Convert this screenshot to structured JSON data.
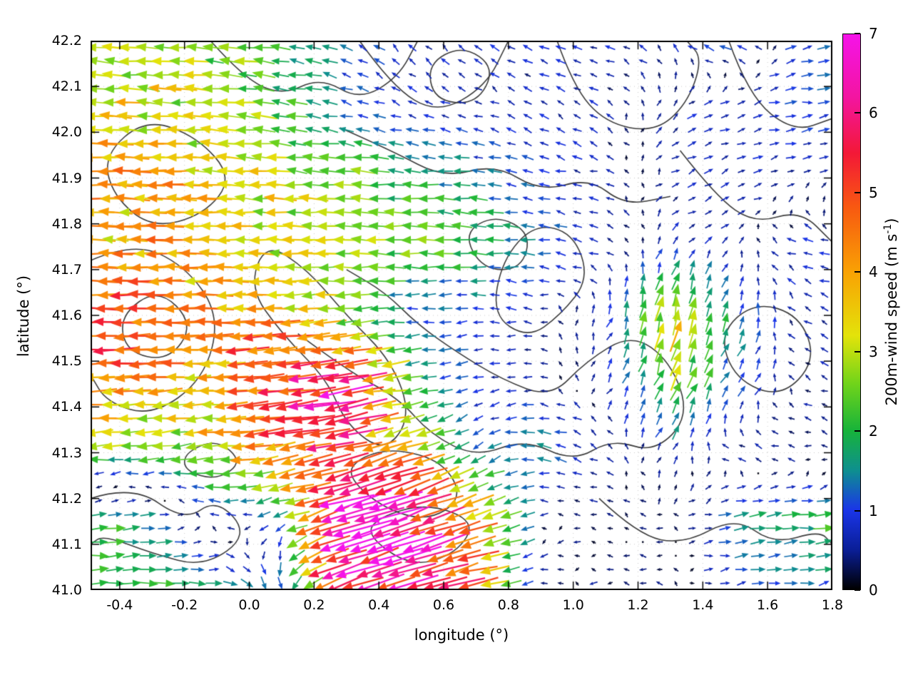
{
  "figure": {
    "background": "#ffffff"
  },
  "chart_data": {
    "type": "quiver",
    "title": "",
    "xlabel": "longitude (°)",
    "ylabel": "latitude (°)",
    "xlim": [
      -0.49,
      1.8
    ],
    "ylim": [
      41.0,
      42.2
    ],
    "grid": "dotted",
    "x_tick_values": [
      -0.4,
      -0.2,
      0.0,
      0.2,
      0.4,
      0.6,
      0.8,
      1.0,
      1.2,
      1.4,
      1.6,
      1.8
    ],
    "x_tick_labels": [
      "-0.4",
      "-0.2",
      "0.0",
      "0.2",
      "0.4",
      "0.6",
      "0.8",
      "1.0",
      "1.2",
      "1.4",
      "1.6",
      "1.8"
    ],
    "y_tick_values": [
      41.0,
      41.1,
      41.2,
      41.3,
      41.4,
      41.5,
      41.6,
      41.7,
      41.8,
      41.9,
      42.0,
      42.1,
      42.2
    ],
    "y_tick_labels": [
      "41.0",
      "41.1",
      "41.2",
      "41.3",
      "41.4",
      "41.5",
      "41.6",
      "41.7",
      "41.8",
      "41.9",
      "42.0",
      "42.1",
      "42.2"
    ],
    "colorbar": {
      "label_pre": "200m-wind speed (m s",
      "label_sup": "-1",
      "label_post": ")",
      "min": 0,
      "max": 7,
      "tick_values": [
        0,
        1,
        2,
        3,
        4,
        5,
        6,
        7
      ],
      "tick_labels": [
        "0",
        "1",
        "2",
        "3",
        "4",
        "5",
        "6",
        "7"
      ],
      "stops": [
        [
          0.0,
          "#000000"
        ],
        [
          0.5,
          "#0a1e96"
        ],
        [
          1.0,
          "#1a35e8"
        ],
        [
          1.5,
          "#0e8f8f"
        ],
        [
          2.0,
          "#17b33a"
        ],
        [
          2.6,
          "#71d41a"
        ],
        [
          3.2,
          "#e3e30a"
        ],
        [
          4.0,
          "#f9a204"
        ],
        [
          4.8,
          "#f85a10"
        ],
        [
          5.5,
          "#f31837"
        ],
        [
          6.2,
          "#f315a0"
        ],
        [
          7.0,
          "#f513e9"
        ]
      ]
    },
    "wind_grid": {
      "units": "m s-1",
      "lons": [
        -0.5,
        -0.3,
        -0.1,
        0.1,
        0.3,
        0.5,
        0.7,
        0.9,
        1.1,
        1.3,
        1.5,
        1.7
      ],
      "lats": [
        41.0,
        41.15,
        41.3,
        41.45,
        41.6,
        41.75,
        41.9,
        42.05,
        42.2
      ],
      "u": [
        [
          2.5,
          2.2,
          1.8,
          0.5,
          -5.5,
          -6.0,
          -4.5,
          -0.4,
          -0.3,
          -0.3,
          0.8,
          1.2
        ],
        [
          2.0,
          1.5,
          -0.5,
          -1.0,
          -6.8,
          -6.5,
          -4.0,
          -0.3,
          -0.2,
          -0.3,
          1.5,
          2.0
        ],
        [
          -2.5,
          -2.2,
          -3.0,
          -4.5,
          -5.5,
          -3.5,
          -1.0,
          -1.5,
          -0.5,
          0.4,
          -0.6,
          -0.5
        ],
        [
          -4.5,
          -4.2,
          -4.0,
          -5.5,
          -6.5,
          -2.0,
          -0.8,
          -0.5,
          0.3,
          1.0,
          0.8,
          -0.4
        ],
        [
          -5.0,
          -4.8,
          -4.2,
          -4.0,
          -2.5,
          -1.2,
          -0.8,
          -0.5,
          0.3,
          0.8,
          0.5,
          -0.5
        ],
        [
          -3.8,
          -4.0,
          -3.6,
          -3.2,
          -3.0,
          -2.5,
          -2.0,
          -1.2,
          -0.6,
          0.5,
          0.3,
          -0.8
        ],
        [
          -4.2,
          -4.0,
          -3.5,
          -3.0,
          -2.5,
          -2.0,
          -1.5,
          -1.0,
          -0.5,
          0.4,
          0.6,
          0.5
        ],
        [
          -3.5,
          -3.2,
          -3.0,
          -2.2,
          -1.2,
          -0.6,
          -0.5,
          -0.6,
          -0.4,
          0.5,
          0.8,
          1.2
        ],
        [
          -3.0,
          -2.8,
          -2.5,
          -2.0,
          -1.0,
          -0.5,
          -0.6,
          -0.8,
          -0.7,
          -0.5,
          -1.2,
          1.0
        ]
      ],
      "v": [
        [
          0.1,
          0.0,
          -0.2,
          -1.5,
          -2.0,
          -2.0,
          -1.0,
          -0.1,
          0.0,
          0.1,
          0.1,
          0.2
        ],
        [
          0.2,
          0.3,
          0.2,
          -0.5,
          -2.0,
          -2.5,
          -1.5,
          -0.1,
          0.0,
          0.1,
          0.2,
          0.2
        ],
        [
          -0.2,
          -0.2,
          -0.3,
          -0.8,
          -1.5,
          -1.0,
          -0.8,
          0.3,
          0.3,
          0.6,
          0.2,
          0.1
        ],
        [
          -0.2,
          -0.2,
          -0.3,
          -0.5,
          -1.0,
          -0.3,
          -0.2,
          0.0,
          0.5,
          2.5,
          1.0,
          0.2
        ],
        [
          0.0,
          -0.1,
          0.0,
          -0.2,
          -0.2,
          -0.1,
          0.0,
          0.1,
          0.8,
          3.5,
          1.5,
          0.3
        ],
        [
          0.0,
          0.1,
          0.1,
          0.1,
          0.1,
          0.1,
          0.1,
          0.1,
          0.2,
          0.5,
          0.4,
          0.2
        ],
        [
          0.1,
          0.1,
          0.2,
          0.2,
          0.2,
          0.1,
          0.2,
          0.2,
          0.2,
          0.3,
          0.2,
          0.3
        ],
        [
          0.1,
          0.2,
          0.2,
          0.3,
          0.3,
          0.3,
          0.2,
          0.4,
          0.3,
          0.4,
          0.2,
          0.1
        ],
        [
          0.2,
          0.3,
          0.2,
          0.3,
          0.5,
          0.5,
          0.4,
          0.3,
          0.2,
          0.5,
          0.3,
          0.3
        ]
      ]
    },
    "contours": [
      {
        "closed": true,
        "pts": [
          [
            -0.45,
            41.95
          ],
          [
            -0.32,
            42.03
          ],
          [
            -0.16,
            41.99
          ],
          [
            -0.05,
            41.9
          ],
          [
            -0.14,
            41.82
          ],
          [
            -0.3,
            41.79
          ],
          [
            -0.42,
            41.86
          ]
        ]
      },
      {
        "closed": false,
        "pts": [
          [
            -0.49,
            41.72
          ],
          [
            -0.36,
            41.76
          ],
          [
            -0.2,
            41.71
          ],
          [
            -0.09,
            41.6
          ],
          [
            -0.14,
            41.46
          ],
          [
            -0.3,
            41.38
          ],
          [
            -0.44,
            41.41
          ],
          [
            -0.49,
            41.47
          ]
        ]
      },
      {
        "closed": true,
        "pts": [
          [
            -0.4,
            41.6
          ],
          [
            -0.28,
            41.66
          ],
          [
            -0.17,
            41.58
          ],
          [
            -0.25,
            41.5
          ],
          [
            -0.38,
            41.52
          ]
        ]
      },
      {
        "closed": true,
        "pts": [
          [
            0.05,
            41.76
          ],
          [
            0.18,
            41.7
          ],
          [
            0.3,
            41.6
          ],
          [
            0.44,
            41.5
          ],
          [
            0.5,
            41.38
          ],
          [
            0.42,
            41.3
          ],
          [
            0.3,
            41.36
          ],
          [
            0.24,
            41.46
          ],
          [
            0.1,
            41.56
          ],
          [
            0.0,
            41.66
          ]
        ]
      },
      {
        "closed": false,
        "pts": [
          [
            0.15,
            41.56
          ],
          [
            0.3,
            41.48
          ],
          [
            0.46,
            41.42
          ],
          [
            0.56,
            41.34
          ],
          [
            0.7,
            41.29
          ],
          [
            0.85,
            41.33
          ],
          [
            1.0,
            41.28
          ],
          [
            1.12,
            41.33
          ],
          [
            1.25,
            41.3
          ],
          [
            1.36,
            41.38
          ],
          [
            1.3,
            41.5
          ],
          [
            1.18,
            41.56
          ],
          [
            1.04,
            41.5
          ],
          [
            0.93,
            41.42
          ],
          [
            0.78,
            41.46
          ],
          [
            0.64,
            41.52
          ],
          [
            0.52,
            41.58
          ],
          [
            0.42,
            41.65
          ],
          [
            0.3,
            41.7
          ]
        ]
      },
      {
        "closed": false,
        "pts": [
          [
            0.34,
            42.2
          ],
          [
            0.44,
            42.1
          ],
          [
            0.58,
            42.04
          ],
          [
            0.73,
            42.1
          ],
          [
            0.8,
            42.2
          ]
        ]
      },
      {
        "closed": true,
        "pts": [
          [
            0.55,
            42.15
          ],
          [
            0.66,
            42.19
          ],
          [
            0.76,
            42.14
          ],
          [
            0.7,
            42.06
          ],
          [
            0.57,
            42.07
          ]
        ]
      },
      {
        "closed": false,
        "pts": [
          [
            0.28,
            42.01
          ],
          [
            0.44,
            41.96
          ],
          [
            0.6,
            41.9
          ],
          [
            0.76,
            41.93
          ],
          [
            0.9,
            41.87
          ],
          [
            1.05,
            41.9
          ],
          [
            1.16,
            41.84
          ],
          [
            1.3,
            41.86
          ]
        ]
      },
      {
        "closed": false,
        "pts": [
          [
            1.48,
            42.2
          ],
          [
            1.54,
            42.08
          ],
          [
            1.68,
            42.0
          ],
          [
            1.8,
            42.03
          ]
        ]
      },
      {
        "closed": false,
        "pts": [
          [
            1.33,
            41.96
          ],
          [
            1.44,
            41.86
          ],
          [
            1.56,
            41.8
          ],
          [
            1.7,
            41.83
          ],
          [
            1.8,
            41.76
          ]
        ]
      },
      {
        "closed": true,
        "pts": [
          [
            1.45,
            41.56
          ],
          [
            1.56,
            41.63
          ],
          [
            1.7,
            41.6
          ],
          [
            1.75,
            41.5
          ],
          [
            1.64,
            41.42
          ],
          [
            1.5,
            41.46
          ]
        ]
      },
      {
        "closed": true,
        "pts": [
          [
            0.3,
            41.25
          ],
          [
            0.41,
            41.18
          ],
          [
            0.55,
            41.15
          ],
          [
            0.66,
            41.2
          ],
          [
            0.6,
            41.28
          ],
          [
            0.45,
            41.31
          ],
          [
            0.34,
            41.29
          ]
        ]
      },
      {
        "closed": true,
        "pts": [
          [
            0.36,
            41.12
          ],
          [
            0.5,
            41.05
          ],
          [
            0.64,
            41.08
          ],
          [
            0.7,
            41.15
          ],
          [
            0.55,
            41.19
          ],
          [
            0.4,
            41.16
          ]
        ]
      },
      {
        "closed": false,
        "pts": [
          [
            -0.49,
            41.2
          ],
          [
            -0.36,
            41.23
          ],
          [
            -0.2,
            41.15
          ],
          [
            -0.1,
            41.2
          ],
          [
            0.0,
            41.12
          ],
          [
            -0.14,
            41.05
          ],
          [
            -0.3,
            41.08
          ],
          [
            -0.45,
            41.12
          ],
          [
            -0.49,
            41.1
          ]
        ]
      },
      {
        "closed": true,
        "pts": [
          [
            0.75,
            41.6
          ],
          [
            0.86,
            41.55
          ],
          [
            0.96,
            41.6
          ],
          [
            1.05,
            41.68
          ],
          [
            1.0,
            41.78
          ],
          [
            0.88,
            41.8
          ],
          [
            0.78,
            41.72
          ]
        ]
      },
      {
        "closed": false,
        "pts": [
          [
            1.08,
            41.2
          ],
          [
            1.2,
            41.12
          ],
          [
            1.34,
            41.1
          ],
          [
            1.5,
            41.16
          ],
          [
            1.62,
            41.1
          ],
          [
            1.76,
            41.13
          ],
          [
            1.8,
            41.1
          ]
        ]
      },
      {
        "closed": false,
        "pts": [
          [
            -0.12,
            42.2
          ],
          [
            -0.02,
            42.12
          ],
          [
            0.1,
            42.08
          ],
          [
            0.22,
            42.12
          ],
          [
            0.34,
            42.07
          ],
          [
            0.46,
            42.12
          ],
          [
            0.52,
            42.2
          ]
        ]
      },
      {
        "closed": false,
        "pts": [
          [
            0.95,
            42.2
          ],
          [
            1.0,
            42.1
          ],
          [
            1.1,
            42.02
          ],
          [
            1.25,
            42.0
          ],
          [
            1.35,
            42.06
          ],
          [
            1.4,
            42.16
          ],
          [
            1.35,
            42.2
          ]
        ]
      },
      {
        "closed": true,
        "pts": [
          [
            0.66,
            41.78
          ],
          [
            0.76,
            41.82
          ],
          [
            0.87,
            41.78
          ],
          [
            0.84,
            41.7
          ],
          [
            0.72,
            41.7
          ]
        ]
      },
      {
        "closed": true,
        "pts": [
          [
            -0.2,
            41.3
          ],
          [
            -0.1,
            41.33
          ],
          [
            -0.02,
            41.28
          ],
          [
            -0.1,
            41.24
          ],
          [
            -0.2,
            41.26
          ]
        ]
      }
    ]
  }
}
